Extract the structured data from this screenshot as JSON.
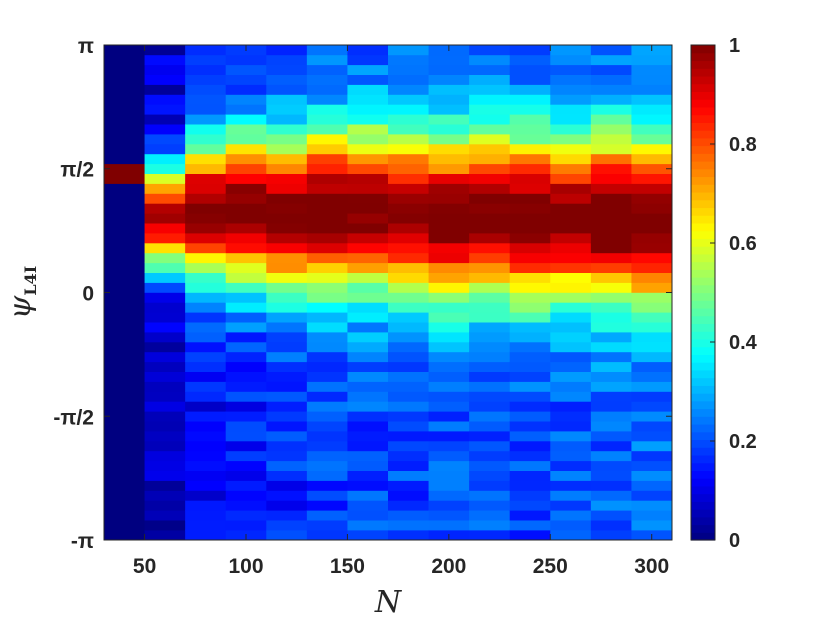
{
  "chart_data": {
    "type": "heatmap",
    "title": "",
    "xlabel": "N",
    "ylabel_symbol": "ψ",
    "ylabel_subscript": "L4I",
    "xlim": [
      30,
      310
    ],
    "ylim": [
      -3.14159,
      3.14159
    ],
    "x_ticks": [
      {
        "value": 50,
        "label": "50"
      },
      {
        "value": 100,
        "label": "100"
      },
      {
        "value": 150,
        "label": "150"
      },
      {
        "value": 200,
        "label": "200"
      },
      {
        "value": 250,
        "label": "250"
      },
      {
        "value": 300,
        "label": "300"
      }
    ],
    "y_ticks": [
      {
        "value": -3.14159,
        "label": "-π"
      },
      {
        "value": -1.5708,
        "label": "-π/2"
      },
      {
        "value": 0,
        "label": "0"
      },
      {
        "value": 1.5708,
        "label": "π/2"
      },
      {
        "value": 3.14159,
        "label": "π"
      }
    ],
    "x_edges": [
      30,
      50,
      70,
      90,
      110,
      130,
      150,
      170,
      190,
      210,
      230,
      250,
      270,
      290,
      310
    ],
    "n_y_bins": 50,
    "columns": [
      {
        "x_start": 30,
        "x_end": 50,
        "peak_psi": 1.5,
        "peak_width": 0.08,
        "peak_value": 1.0,
        "base_value": 0.0,
        "spike": true
      },
      {
        "x_start": 50,
        "x_end": 70,
        "peak_psi": 0.95,
        "peak_width": 0.45,
        "peak_value": 0.9,
        "base_value": 0.04
      },
      {
        "x_start": 70,
        "x_end": 90,
        "peak_psi": 1.05,
        "peak_width": 0.6,
        "peak_value": 0.95,
        "base_value": 0.1
      },
      {
        "x_start": 90,
        "x_end": 110,
        "peak_psi": 1.05,
        "peak_width": 0.65,
        "peak_value": 0.96,
        "base_value": 0.12
      },
      {
        "x_start": 110,
        "x_end": 130,
        "peak_psi": 1.0,
        "peak_width": 0.68,
        "peak_value": 0.95,
        "base_value": 0.14
      },
      {
        "x_start": 130,
        "x_end": 150,
        "peak_psi": 1.05,
        "peak_width": 0.7,
        "peak_value": 0.98,
        "base_value": 0.16
      },
      {
        "x_start": 150,
        "x_end": 170,
        "peak_psi": 1.05,
        "peak_width": 0.7,
        "peak_value": 0.97,
        "base_value": 0.17
      },
      {
        "x_start": 170,
        "x_end": 190,
        "peak_psi": 1.0,
        "peak_width": 0.7,
        "peak_value": 0.96,
        "base_value": 0.17
      },
      {
        "x_start": 190,
        "x_end": 210,
        "peak_psi": 0.95,
        "peak_width": 0.72,
        "peak_value": 0.96,
        "base_value": 0.18
      },
      {
        "x_start": 210,
        "x_end": 230,
        "peak_psi": 1.0,
        "peak_width": 0.72,
        "peak_value": 0.97,
        "base_value": 0.18
      },
      {
        "x_start": 230,
        "x_end": 250,
        "peak_psi": 0.95,
        "peak_width": 0.72,
        "peak_value": 0.97,
        "base_value": 0.18
      },
      {
        "x_start": 250,
        "x_end": 270,
        "peak_psi": 0.95,
        "peak_width": 0.72,
        "peak_value": 0.96,
        "base_value": 0.18
      },
      {
        "x_start": 270,
        "x_end": 290,
        "peak_psi": 0.95,
        "peak_width": 0.72,
        "peak_value": 0.99,
        "base_value": 0.19
      },
      {
        "x_start": 290,
        "x_end": 310,
        "peak_psi": 0.9,
        "peak_width": 0.72,
        "peak_value": 0.99,
        "base_value": 0.2
      }
    ],
    "colorbar": {
      "colormap": "jet",
      "range": [
        0,
        1
      ],
      "ticks": [
        {
          "value": 0,
          "label": "0"
        },
        {
          "value": 0.2,
          "label": "0.2"
        },
        {
          "value": 0.4,
          "label": "0.4"
        },
        {
          "value": 0.6,
          "label": "0.6"
        },
        {
          "value": 0.8,
          "label": "0.8"
        },
        {
          "value": 1,
          "label": "1"
        }
      ]
    },
    "grid": false,
    "legend": "none"
  }
}
